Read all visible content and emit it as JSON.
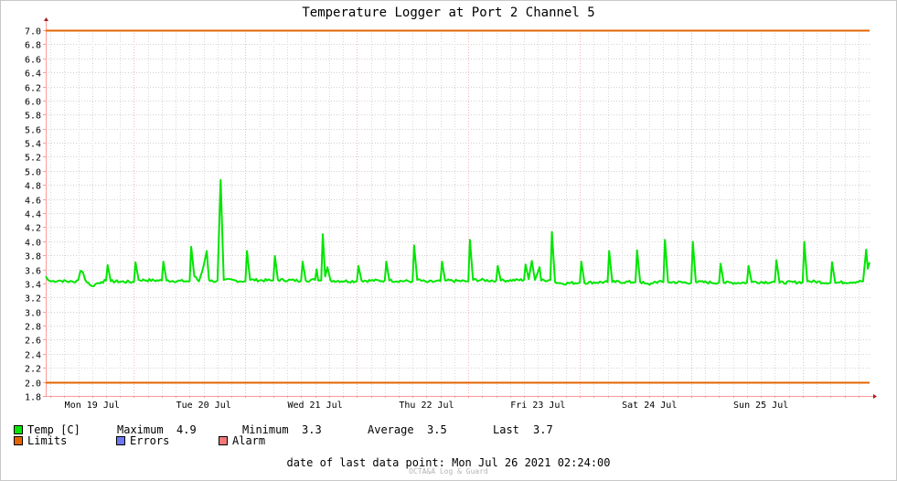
{
  "chart_data": {
    "type": "line",
    "title": "Temperature Logger at Port 2 Channel 5",
    "ylim": [
      1.8,
      7.0
    ],
    "yticks": [
      "7.0",
      "6.8",
      "6.6",
      "6.4",
      "6.2",
      "6.0",
      "5.8",
      "5.6",
      "5.4",
      "5.2",
      "5.0",
      "4.8",
      "4.6",
      "4.4",
      "4.2",
      "4.0",
      "3.8",
      "3.6",
      "3.4",
      "3.2",
      "3.0",
      "2.8",
      "2.6",
      "2.4",
      "2.2",
      "2.0",
      "1.8"
    ],
    "x_day_labels": [
      "Mon 19 Jul",
      "Tue 20 Jul",
      "Wed 21 Jul",
      "Thu 22 Jul",
      "Fri 23 Jul",
      "Sat 24 Jul",
      "Sun 25 Jul"
    ],
    "x_start": "2021-07-18 17:00",
    "x_end": "2021-07-26 02:24",
    "grid": true,
    "series": [
      {
        "name": "Temp [C]",
        "color": "#00e600",
        "baseline": 3.43,
        "points": [
          [
            "2021-07-18 17:00",
            3.5
          ],
          [
            "2021-07-18 17:30",
            3.45
          ],
          [
            "2021-07-18 18:00",
            3.43
          ],
          [
            "2021-07-18 20:00",
            3.44
          ],
          [
            "2021-07-18 23:00",
            3.42
          ],
          [
            "2021-07-19 00:00",
            3.45
          ],
          [
            "2021-07-19 00:30",
            3.58
          ],
          [
            "2021-07-19 01:00",
            3.56
          ],
          [
            "2021-07-19 01:30",
            3.45
          ],
          [
            "2021-07-19 02:30",
            3.38
          ],
          [
            "2021-07-19 03:00",
            3.36
          ],
          [
            "2021-07-19 04:00",
            3.4
          ],
          [
            "2021-07-19 05:00",
            3.42
          ],
          [
            "2021-07-19 06:00",
            3.44
          ],
          [
            "2021-07-19 06:20",
            3.66
          ],
          [
            "2021-07-19 07:00",
            3.43
          ],
          [
            "2021-07-19 12:00",
            3.42
          ],
          [
            "2021-07-19 12:20",
            3.7
          ],
          [
            "2021-07-19 13:00",
            3.45
          ],
          [
            "2021-07-19 18:00",
            3.44
          ],
          [
            "2021-07-19 18:20",
            3.71
          ],
          [
            "2021-07-19 19:00",
            3.44
          ],
          [
            "2021-07-20 00:00",
            3.43
          ],
          [
            "2021-07-20 00:20",
            3.92
          ],
          [
            "2021-07-20 01:00",
            3.5
          ],
          [
            "2021-07-20 02:00",
            3.43
          ],
          [
            "2021-07-20 03:00",
            3.65
          ],
          [
            "2021-07-20 03:40",
            3.86
          ],
          [
            "2021-07-20 04:10",
            3.45
          ],
          [
            "2021-07-20 05:00",
            3.43
          ],
          [
            "2021-07-20 06:00",
            3.44
          ],
          [
            "2021-07-20 06:40",
            4.87
          ],
          [
            "2021-07-20 07:20",
            3.45
          ],
          [
            "2021-07-20 12:00",
            3.43
          ],
          [
            "2021-07-20 12:20",
            3.86
          ],
          [
            "2021-07-20 13:00",
            3.45
          ],
          [
            "2021-07-20 18:00",
            3.44
          ],
          [
            "2021-07-20 18:20",
            3.79
          ],
          [
            "2021-07-20 19:00",
            3.45
          ],
          [
            "2021-07-21 00:00",
            3.44
          ],
          [
            "2021-07-21 00:20",
            3.71
          ],
          [
            "2021-07-21 01:00",
            3.44
          ],
          [
            "2021-07-21 03:00",
            3.45
          ],
          [
            "2021-07-21 03:20",
            3.6
          ],
          [
            "2021-07-21 03:40",
            3.44
          ],
          [
            "2021-07-21 04:20",
            3.44
          ],
          [
            "2021-07-21 04:40",
            4.1
          ],
          [
            "2021-07-21 05:10",
            3.5
          ],
          [
            "2021-07-21 05:40",
            3.63
          ],
          [
            "2021-07-21 06:20",
            3.44
          ],
          [
            "2021-07-21 12:00",
            3.43
          ],
          [
            "2021-07-21 12:20",
            3.65
          ],
          [
            "2021-07-21 13:00",
            3.44
          ],
          [
            "2021-07-21 18:00",
            3.44
          ],
          [
            "2021-07-21 18:20",
            3.71
          ],
          [
            "2021-07-21 19:00",
            3.44
          ],
          [
            "2021-07-22 00:00",
            3.43
          ],
          [
            "2021-07-22 00:20",
            3.94
          ],
          [
            "2021-07-22 01:00",
            3.45
          ],
          [
            "2021-07-22 03:00",
            3.42
          ],
          [
            "2021-07-22 06:00",
            3.43
          ],
          [
            "2021-07-22 06:20",
            3.71
          ],
          [
            "2021-07-22 07:00",
            3.44
          ],
          [
            "2021-07-22 12:00",
            3.43
          ],
          [
            "2021-07-22 12:20",
            4.02
          ],
          [
            "2021-07-22 13:00",
            3.45
          ],
          [
            "2021-07-22 18:00",
            3.44
          ],
          [
            "2021-07-22 18:20",
            3.65
          ],
          [
            "2021-07-22 19:00",
            3.44
          ],
          [
            "2021-07-23 00:00",
            3.45
          ],
          [
            "2021-07-23 00:20",
            3.67
          ],
          [
            "2021-07-23 01:00",
            3.46
          ],
          [
            "2021-07-23 01:40",
            3.72
          ],
          [
            "2021-07-23 02:20",
            3.45
          ],
          [
            "2021-07-23 03:20",
            3.63
          ],
          [
            "2021-07-23 03:40",
            3.44
          ],
          [
            "2021-07-23 05:40",
            3.45
          ],
          [
            "2021-07-23 06:00",
            4.13
          ],
          [
            "2021-07-23 06:40",
            3.42
          ],
          [
            "2021-07-23 08:00",
            3.4
          ],
          [
            "2021-07-23 12:00",
            3.41
          ],
          [
            "2021-07-23 12:20",
            3.71
          ],
          [
            "2021-07-23 13:00",
            3.41
          ],
          [
            "2021-07-23 18:00",
            3.42
          ],
          [
            "2021-07-23 18:20",
            3.86
          ],
          [
            "2021-07-23 19:00",
            3.42
          ],
          [
            "2021-07-24 00:00",
            3.42
          ],
          [
            "2021-07-24 00:20",
            3.87
          ],
          [
            "2021-07-24 01:00",
            3.42
          ],
          [
            "2021-07-24 02:00",
            3.4
          ],
          [
            "2021-07-24 03:00",
            3.38
          ],
          [
            "2021-07-24 04:00",
            3.42
          ],
          [
            "2021-07-24 06:00",
            3.42
          ],
          [
            "2021-07-24 06:20",
            4.02
          ],
          [
            "2021-07-24 07:00",
            3.42
          ],
          [
            "2021-07-24 12:00",
            3.41
          ],
          [
            "2021-07-24 12:20",
            3.99
          ],
          [
            "2021-07-24 13:00",
            3.42
          ],
          [
            "2021-07-24 18:00",
            3.41
          ],
          [
            "2021-07-24 18:20",
            3.68
          ],
          [
            "2021-07-24 19:00",
            3.41
          ],
          [
            "2021-07-25 00:00",
            3.41
          ],
          [
            "2021-07-25 00:20",
            3.65
          ],
          [
            "2021-07-25 01:00",
            3.42
          ],
          [
            "2021-07-25 06:00",
            3.42
          ],
          [
            "2021-07-25 06:20",
            3.73
          ],
          [
            "2021-07-25 07:00",
            3.41
          ],
          [
            "2021-07-25 12:00",
            3.42
          ],
          [
            "2021-07-25 12:20",
            3.99
          ],
          [
            "2021-07-25 13:00",
            3.43
          ],
          [
            "2021-07-25 18:00",
            3.41
          ],
          [
            "2021-07-25 18:20",
            3.7
          ],
          [
            "2021-07-25 19:00",
            3.41
          ],
          [
            "2021-07-26 01:00",
            3.43
          ],
          [
            "2021-07-26 01:40",
            3.88
          ],
          [
            "2021-07-26 02:00",
            3.61
          ],
          [
            "2021-07-26 02:24",
            3.7
          ]
        ]
      },
      {
        "name": "Limits",
        "color": "#e66400",
        "values": [
          7.0,
          2.0
        ]
      }
    ]
  },
  "legend": {
    "temp_label": "Temp [C]",
    "limits_label": "Limits",
    "errors_label": "Errors",
    "alarm_label": "Alarm",
    "colors": {
      "temp": "#00e600",
      "limits": "#e66400",
      "errors": "#6e78f0",
      "alarm": "#f07878"
    }
  },
  "stats": {
    "max_label": "Maximum",
    "max_value": "4.9",
    "min_label": "Minimum",
    "min_value": "3.3",
    "avg_label": "Average",
    "avg_value": "3.5",
    "last_label": "Last",
    "last_value": "3.7"
  },
  "footer": {
    "last_point_label": "date of last data point:",
    "last_point_value": "Mon Jul 26 2021 02:24:00",
    "watermark": "OCTA&A Log & Guard"
  }
}
